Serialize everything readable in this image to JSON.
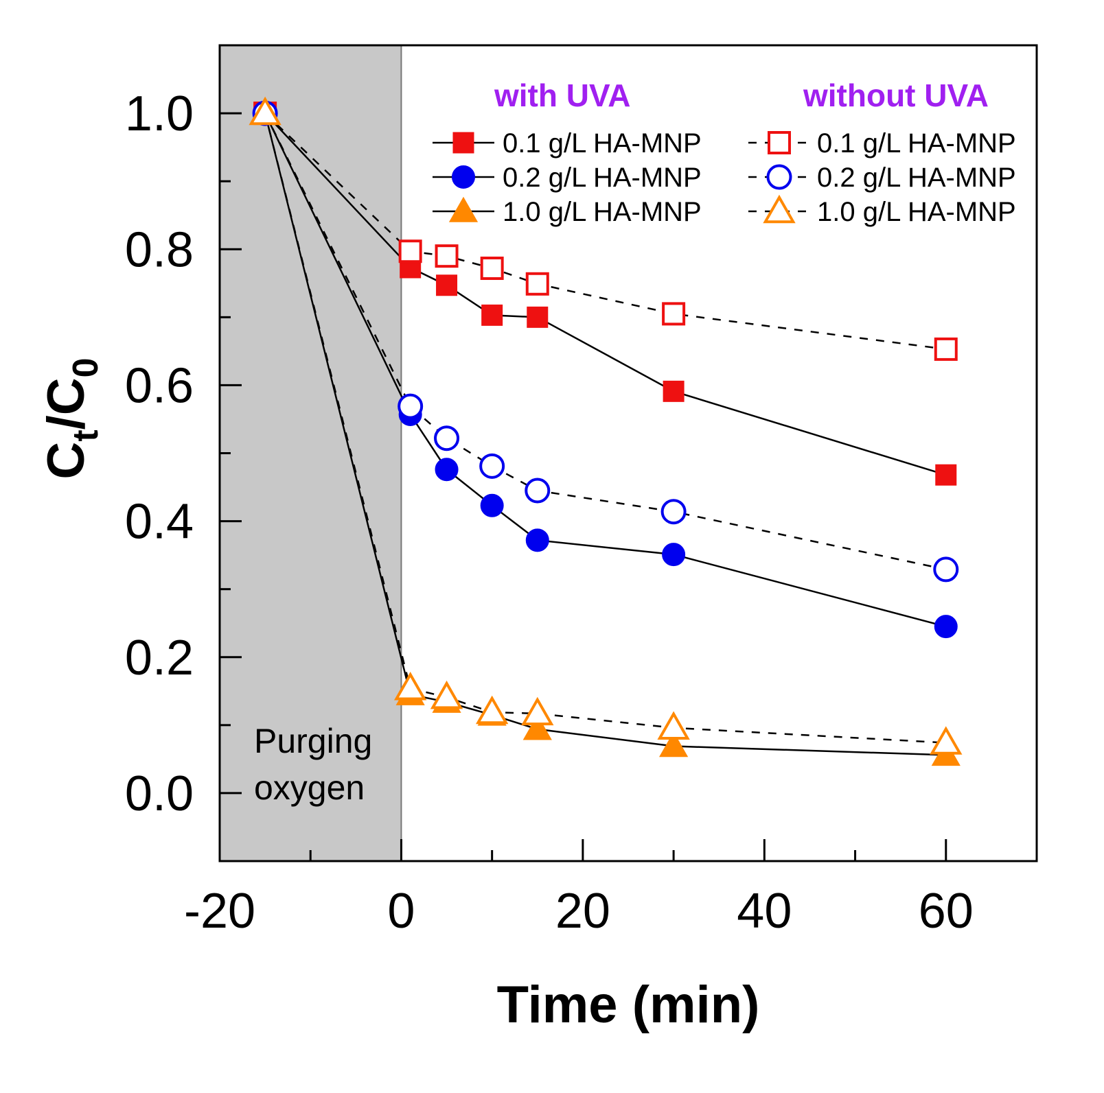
{
  "chart_data": {
    "type": "line",
    "xlabel": "Time (min)",
    "ylabel": "Ct/C0",
    "xlim": [
      -20,
      70
    ],
    "ylim": [
      -0.1,
      1.1
    ],
    "xticks": [
      -20,
      0,
      20,
      40,
      60
    ],
    "yticks": [
      "0.0",
      "0.2",
      "0.4",
      "0.6",
      "0.8",
      "1.0"
    ],
    "grid": false,
    "legend_placement": "top-right",
    "shaded_region": {
      "x": [
        -20,
        0
      ],
      "label_line1": "Purging",
      "label_line2": "oxygen",
      "color": "#c8c8c8"
    },
    "legend_groups": [
      {
        "title": "with UVA",
        "color": "#a020f0"
      },
      {
        "title": "without UVA",
        "color": "#a020f0"
      }
    ],
    "x": [
      -15,
      1,
      5,
      10,
      15,
      30,
      60
    ],
    "series": [
      {
        "name": "0.1 g/L HA-MNP",
        "group": "with UVA",
        "marker": "square",
        "filled": true,
        "dashed": false,
        "color": "#ee1111",
        "values": [
          1.0,
          0.773,
          0.747,
          0.703,
          0.7,
          0.591,
          0.468
        ]
      },
      {
        "name": "0.2 g/L HA-MNP",
        "group": "with UVA",
        "marker": "circle",
        "filled": true,
        "dashed": false,
        "color": "#0000ee",
        "values": [
          1.0,
          0.557,
          0.476,
          0.423,
          0.372,
          0.351,
          0.245
        ]
      },
      {
        "name": "1.0 g/L HA-MNP",
        "group": "with UVA",
        "marker": "triangle",
        "filled": true,
        "dashed": false,
        "color": "#ff8800",
        "values": [
          1.0,
          0.145,
          0.134,
          0.115,
          0.094,
          0.069,
          0.056
        ]
      },
      {
        "name": "0.1 g/L HA-MNP",
        "group": "without UVA",
        "marker": "square",
        "filled": false,
        "dashed": true,
        "color": "#ee1111",
        "values": [
          1.0,
          0.797,
          0.79,
          0.772,
          0.749,
          0.705,
          0.653
        ]
      },
      {
        "name": "0.2 g/L HA-MNP",
        "group": "without UVA",
        "marker": "circle",
        "filled": false,
        "dashed": true,
        "color": "#0000ee",
        "values": [
          1.0,
          0.569,
          0.522,
          0.481,
          0.445,
          0.414,
          0.329
        ]
      },
      {
        "name": "1.0 g/L HA-MNP",
        "group": "without UVA",
        "marker": "triangle",
        "filled": false,
        "dashed": true,
        "color": "#ff8800",
        "values": [
          1.0,
          0.154,
          0.141,
          0.119,
          0.117,
          0.096,
          0.074
        ]
      }
    ]
  }
}
